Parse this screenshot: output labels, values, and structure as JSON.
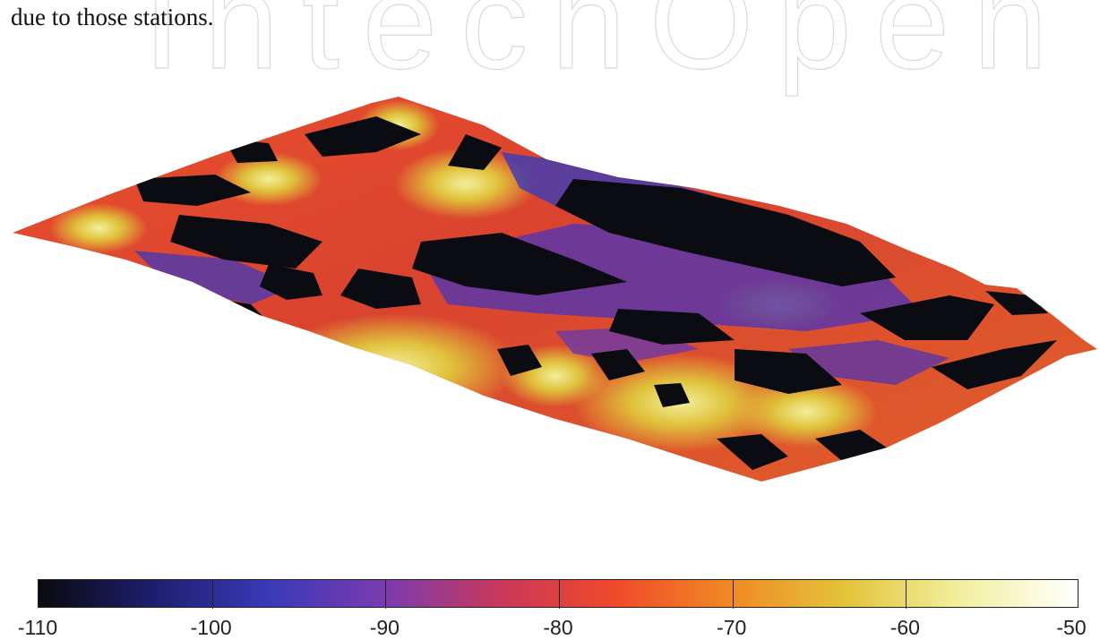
{
  "caption": "due to those stations.",
  "watermark": "IntechOpen",
  "colorbar": {
    "min": -110,
    "max": -50,
    "tick_labels": [
      "-110",
      "-100",
      "-90",
      "-80",
      "-70",
      "-60",
      "-50"
    ],
    "colors": [
      "#0a0a0f",
      "#1d1f6e",
      "#3a3ab8",
      "#7a3bb0",
      "#c9385a",
      "#f04a2a",
      "#f08a24",
      "#e3c43a",
      "#f2f0a0",
      "#ffffff"
    ]
  }
}
